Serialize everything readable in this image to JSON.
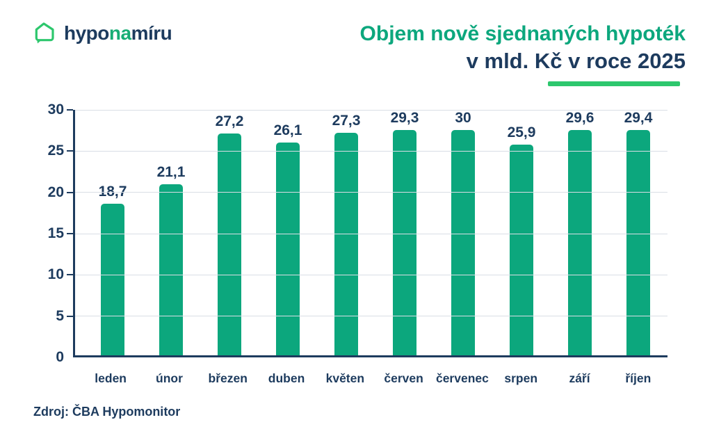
{
  "logo": {
    "icon": "house-chat-bubble-icon",
    "text_prefix": "hypo",
    "text_highlight": "na",
    "text_suffix": "míru"
  },
  "title": {
    "line1": "Objem nově sjednaných hypoték",
    "line2": "v mld. Kč v roce 2025"
  },
  "source": "Zdroj: ČBA Hypomonitor",
  "colors": {
    "navy": "#1d3b5e",
    "bar_green": "#0ca77d",
    "bright_green": "#2dc76d",
    "gridline": "#d9dee5"
  },
  "chart_data": {
    "type": "bar",
    "title": "Objem nově sjednaných hypoték v mld. Kč v roce 2025",
    "categories": [
      "leden",
      "únor",
      "březen",
      "duben",
      "květen",
      "červen",
      "červenec",
      "srpen",
      "září",
      "říjen"
    ],
    "values": [
      18.7,
      21.1,
      27.2,
      26.1,
      27.3,
      29.3,
      30,
      25.9,
      29.6,
      29.4
    ],
    "value_labels": [
      "18,7",
      "21,1",
      "27,2",
      "26,1",
      "27,3",
      "29,3",
      "30",
      "25,9",
      "29,6",
      "29,4"
    ],
    "xlabel": "",
    "ylabel": "",
    "ylim": [
      0,
      30
    ],
    "yticks": [
      0,
      5,
      10,
      15,
      20,
      25,
      30
    ],
    "grid": true,
    "legend": false,
    "bar_color": "#0ca77d"
  }
}
